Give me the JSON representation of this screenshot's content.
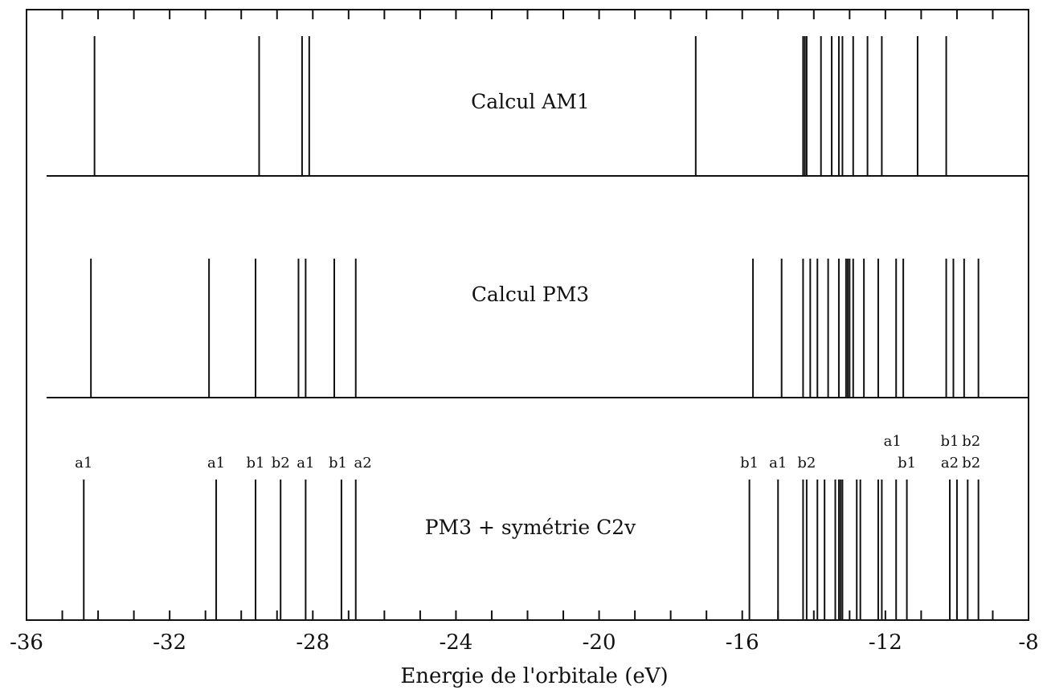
{
  "chart_data": {
    "type": "line",
    "xlabel": "Energie de l'orbitale (eV)",
    "xlim": [
      -36,
      -8
    ],
    "x_ticks": [
      -36,
      -32,
      -28,
      -24,
      -20,
      -16,
      -12,
      -8
    ],
    "x_tick_labels": [
      "-36",
      "-32",
      "-28",
      "-24",
      "-20",
      "-16",
      "-12",
      "-8"
    ],
    "minor_tick_step": 1,
    "grid": false,
    "panels": [
      {
        "name": "Calcul AM1",
        "energies": [
          -34.1,
          -29.5,
          -28.3,
          -28.1,
          -17.3,
          -14.3,
          -14.25,
          -14.2,
          -13.8,
          -13.5,
          -13.3,
          -13.2,
          -12.9,
          -12.5,
          -12.1,
          -11.1,
          -10.3
        ]
      },
      {
        "name": "Calcul PM3",
        "energies": [
          -34.2,
          -30.9,
          -29.6,
          -28.4,
          -28.2,
          -27.4,
          -26.8,
          -15.7,
          -14.9,
          -14.3,
          -14.1,
          -13.9,
          -13.6,
          -13.3,
          -13.1,
          -13.05,
          -13.0,
          -12.9,
          -12.6,
          -12.2,
          -11.7,
          -11.5,
          -10.3,
          -10.1,
          -9.8,
          -9.4
        ]
      },
      {
        "name": "PM3 + symétrie C2v",
        "energies": [
          -34.4,
          -30.7,
          -29.6,
          -28.9,
          -28.2,
          -27.2,
          -26.8,
          -15.8,
          -15.0,
          -14.3,
          -14.2,
          -13.9,
          -13.7,
          -13.4,
          -13.3,
          -13.25,
          -13.2,
          -12.8,
          -12.7,
          -12.2,
          -12.1,
          -11.7,
          -11.4,
          -10.2,
          -10.0,
          -9.7,
          -9.4
        ],
        "labels": [
          {
            "x": -34.4,
            "row": 1,
            "text": "a1"
          },
          {
            "x": -30.7,
            "row": 1,
            "text": "a1"
          },
          {
            "x": -29.6,
            "row": 1,
            "text": "b1"
          },
          {
            "x": -28.9,
            "row": 1,
            "text": "b2"
          },
          {
            "x": -28.2,
            "row": 1,
            "text": "a1"
          },
          {
            "x": -27.3,
            "row": 1,
            "text": "b1"
          },
          {
            "x": -26.6,
            "row": 1,
            "text": "a2"
          },
          {
            "x": -15.8,
            "row": 1,
            "text": "b1"
          },
          {
            "x": -15.0,
            "row": 1,
            "text": "a1"
          },
          {
            "x": -14.2,
            "row": 1,
            "text": "b2"
          },
          {
            "x": -11.8,
            "row": 0,
            "text": "a1"
          },
          {
            "x": -11.4,
            "row": 1,
            "text": "b1"
          },
          {
            "x": -10.2,
            "row": 0,
            "text": "b1"
          },
          {
            "x": -9.6,
            "row": 0,
            "text": "b2"
          },
          {
            "x": -10.2,
            "row": 1,
            "text": "a2"
          },
          {
            "x": -9.6,
            "row": 1,
            "text": "b2"
          }
        ]
      }
    ]
  }
}
